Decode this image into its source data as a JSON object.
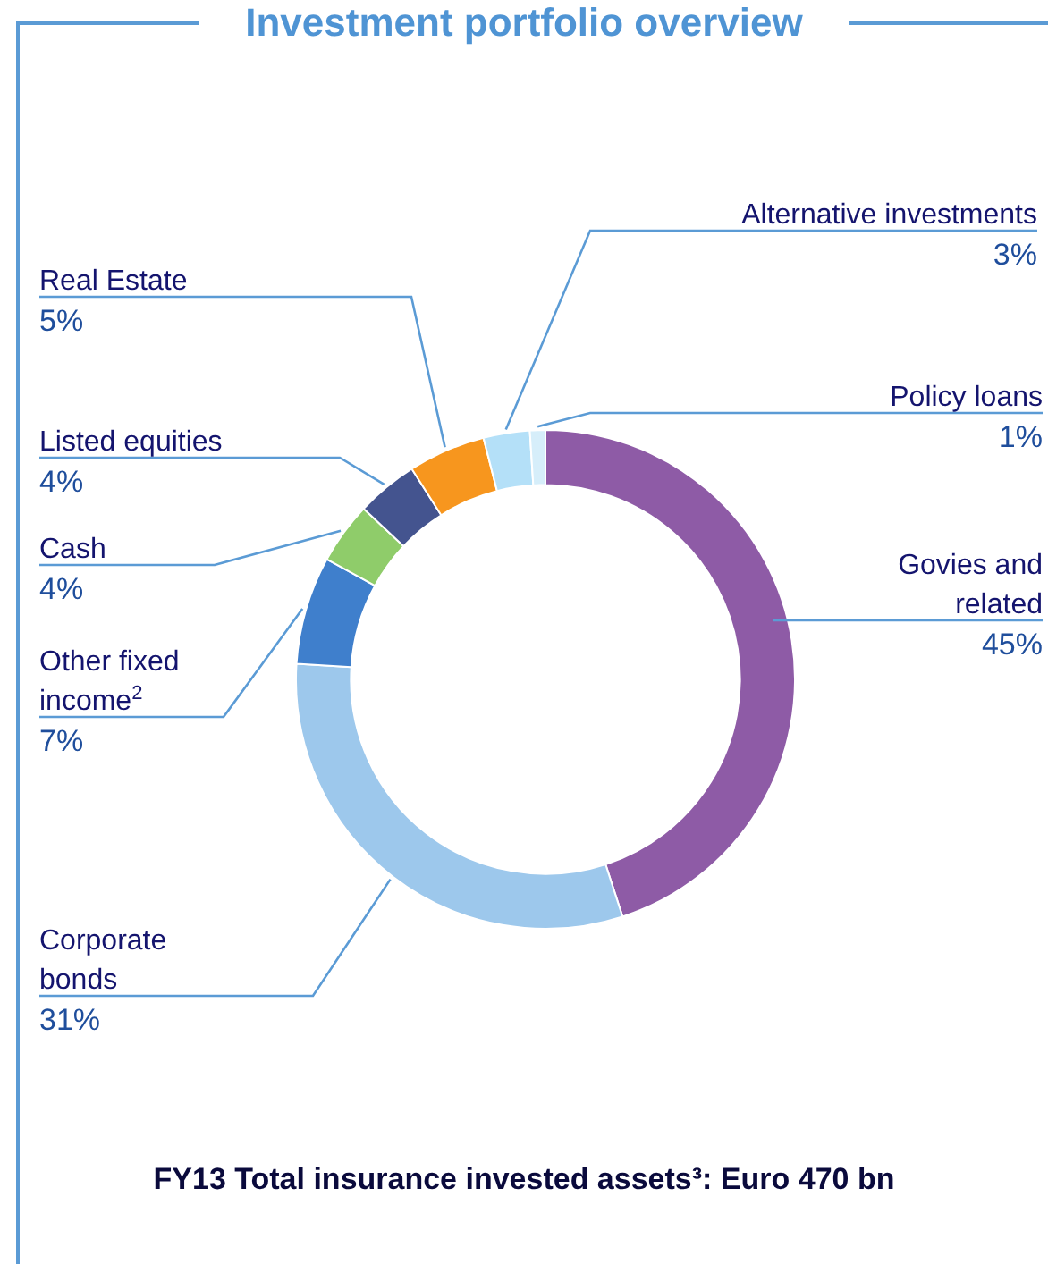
{
  "chart_data": {
    "type": "donut",
    "title": "Investment portfolio overview",
    "categories": [
      "Govies and\nrelated",
      "Corporate\nbonds",
      "Other fixed\nincome$^{2}$",
      "Cash",
      "Listed equities",
      "Real Estate",
      "Alternative investments",
      "Policy loans"
    ],
    "values": [
      45,
      31,
      7,
      4,
      4,
      5,
      3,
      1
    ],
    "colors": [
      "#8e5ba6",
      "#9dc8ec",
      "#3f7fcc",
      "#8fcc6a",
      "#44548f",
      "#f7961e",
      "#b4e0f8",
      "#d6eefa"
    ],
    "value_labels": [
      "45%",
      "31%",
      "7%",
      "4%",
      "4%",
      "5%",
      "3%",
      "1%"
    ],
    "legend": false,
    "annotations": [
      "FY13 Total insurance invested assets³: Euro 470 bn"
    ]
  }
}
